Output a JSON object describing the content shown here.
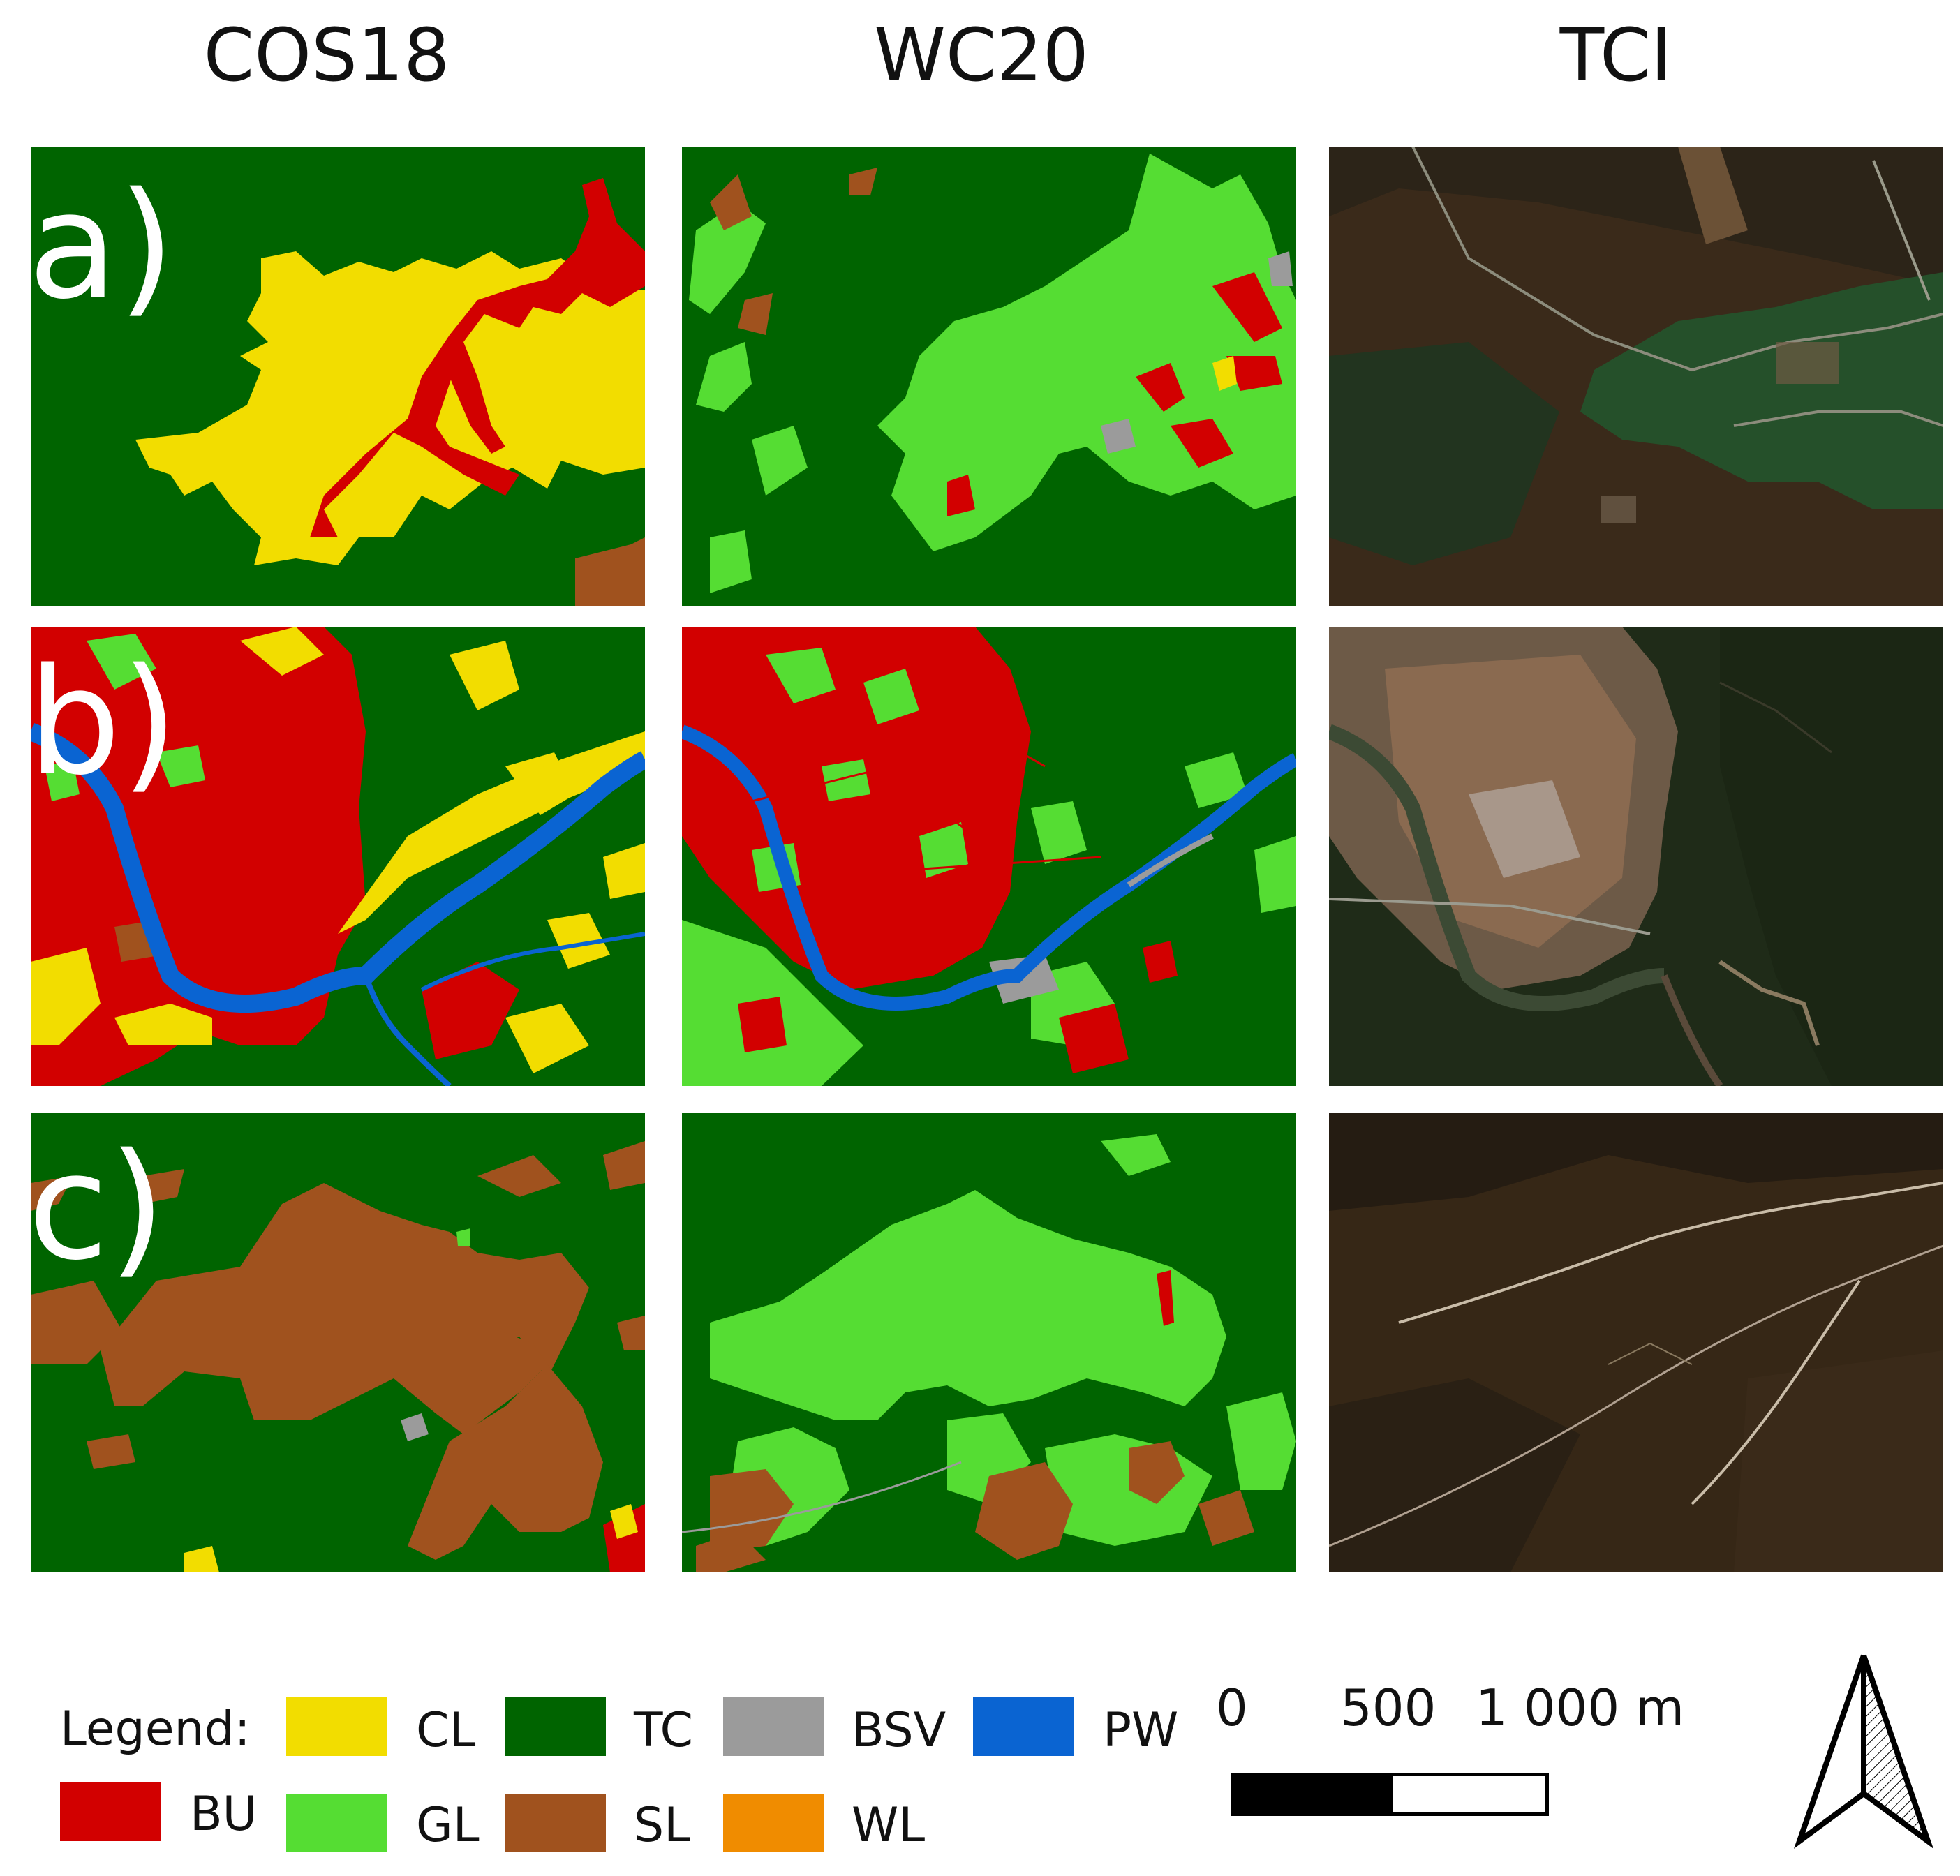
{
  "columns": [
    "COS18",
    "WC20",
    "TCI"
  ],
  "rows": [
    "a)",
    "b)",
    "c)"
  ],
  "legend": {
    "title": "Legend:",
    "classes": [
      {
        "code": "CL",
        "color": "#f2dd00"
      },
      {
        "code": "TC",
        "color": "#006400"
      },
      {
        "code": "BSV",
        "color": "#9b9b9b"
      },
      {
        "code": "PW",
        "color": "#0a64d2"
      },
      {
        "code": "BU",
        "color": "#d20000"
      },
      {
        "code": "GL",
        "color": "#55dd33"
      },
      {
        "code": "SL",
        "color": "#a0521e"
      },
      {
        "code": "WL",
        "color": "#f08c00"
      }
    ]
  },
  "scale_bar": {
    "labels": [
      "0",
      "500",
      "1 000 m"
    ]
  },
  "north_arrow": {
    "icon": "north-arrow-icon"
  }
}
